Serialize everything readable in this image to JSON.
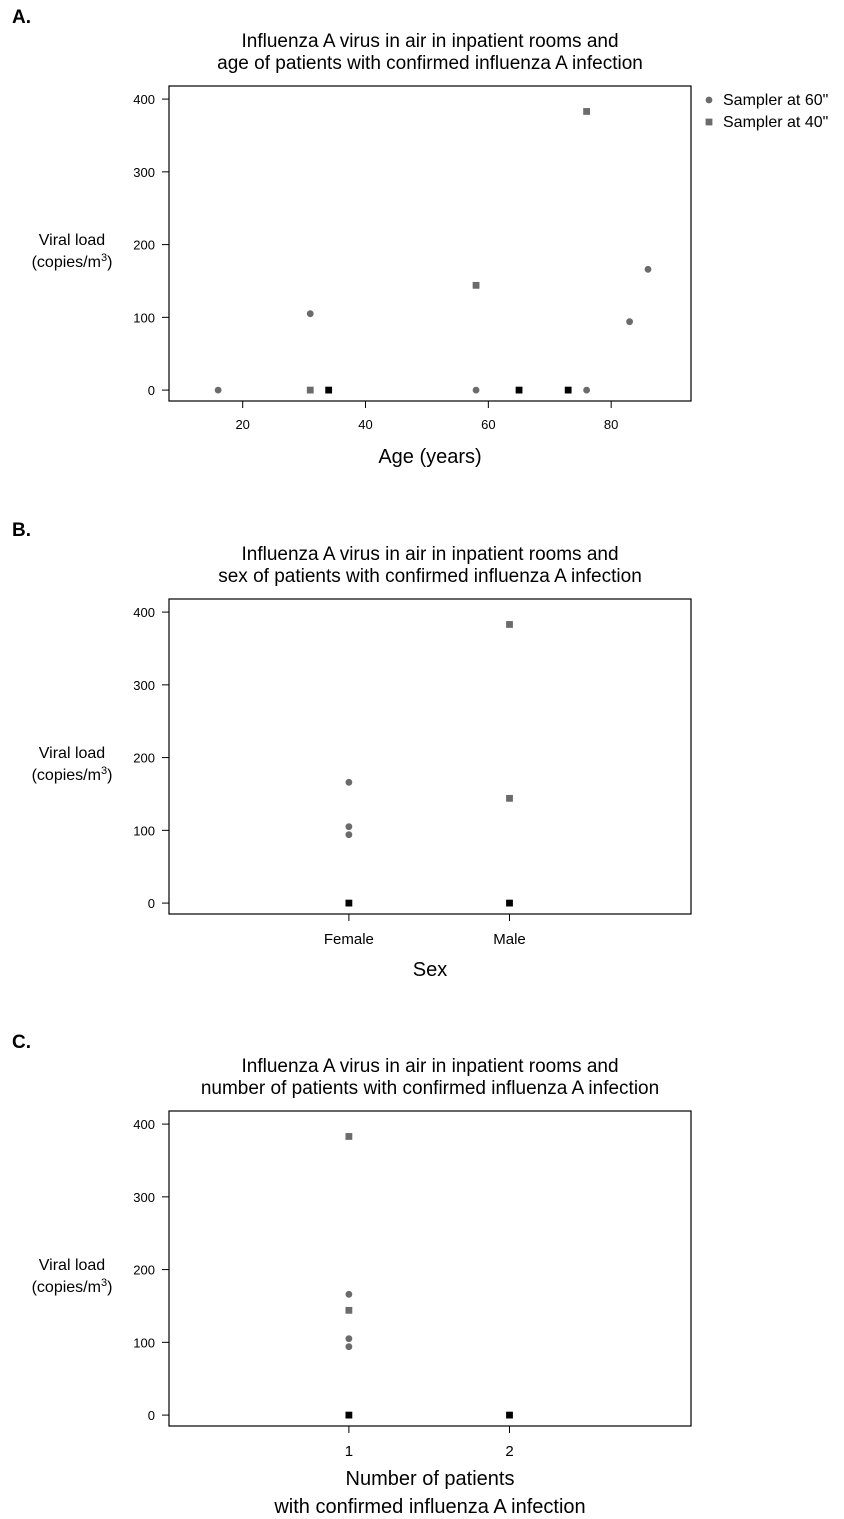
{
  "colors": {
    "gray_marker": "#6b6b6b",
    "black_marker": "#000000",
    "axis": "#000000"
  },
  "chart_data": [
    {
      "panel_label": "A.",
      "type": "scatter",
      "title": [
        "Influenza A virus in air in inpatient rooms and",
        "age of patients with confirmed influenza A infection"
      ],
      "ylabel": {
        "main": "Viral load",
        "unit_prefix": "(copies/m",
        "unit_sup": "3",
        "unit_suffix": ")"
      },
      "xlabel": [
        "Age (years)"
      ],
      "x_axis": {
        "scale": "numeric",
        "xlim": [
          8,
          93
        ],
        "ticks": [
          "20",
          "40",
          "60",
          "80"
        ]
      },
      "ylim": [
        -15,
        418
      ],
      "yticks": [
        "0",
        "100",
        "200",
        "300",
        "400"
      ],
      "legend": {
        "placement": "outside-right",
        "entries": [
          {
            "label": "Sampler at 60\"",
            "marker": "circle"
          },
          {
            "label": "Sampler at 40\"",
            "marker": "square"
          }
        ]
      },
      "series": [
        {
          "marker": "circle",
          "color": "gray",
          "points": [
            [
              16,
              0
            ],
            [
              31,
              105
            ],
            [
              58,
              0
            ],
            [
              76,
              0
            ],
            [
              83,
              94
            ],
            [
              86,
              166
            ]
          ]
        },
        {
          "marker": "square",
          "color": "gray",
          "points": [
            [
              31,
              0
            ],
            [
              58,
              144
            ],
            [
              76,
              383
            ]
          ]
        },
        {
          "marker": "square",
          "color": "black",
          "points": [
            [
              34,
              0
            ],
            [
              65,
              0
            ],
            [
              73,
              0
            ]
          ]
        }
      ]
    },
    {
      "panel_label": "B.",
      "type": "scatter",
      "title": [
        "Influenza A virus in air in inpatient rooms and",
        "sex of patients with confirmed influenza A infection"
      ],
      "ylabel": {
        "main": "Viral load",
        "unit_prefix": "(copies/m",
        "unit_sup": "3",
        "unit_suffix": ")"
      },
      "xlabel": [
        "Sex"
      ],
      "x_axis": {
        "scale": "categorical",
        "xlim": [
          0.5,
          3.75
        ],
        "categories": [
          "Female",
          "Male"
        ],
        "positions": [
          1.62,
          2.62
        ]
      },
      "ylim": [
        -15,
        418
      ],
      "yticks": [
        "0",
        "100",
        "200",
        "300",
        "400"
      ],
      "series": [
        {
          "marker": "circle",
          "color": "gray",
          "points": [
            [
              1.62,
              166
            ],
            [
              1.62,
              105
            ],
            [
              1.62,
              94
            ]
          ]
        },
        {
          "marker": "square",
          "color": "gray",
          "points": [
            [
              2.62,
              383
            ],
            [
              2.62,
              144
            ]
          ]
        },
        {
          "marker": "square",
          "color": "black",
          "points": [
            [
              1.62,
              0
            ],
            [
              2.62,
              0
            ]
          ]
        }
      ]
    },
    {
      "panel_label": "C.",
      "type": "scatter",
      "title": [
        "Influenza A virus in air in inpatient rooms and",
        "number of patients with confirmed influenza A infection"
      ],
      "ylabel": {
        "main": "Viral load",
        "unit_prefix": "(copies/m",
        "unit_sup": "3",
        "unit_suffix": ")"
      },
      "xlabel": [
        "Number of patients",
        "with confirmed influenza A infection"
      ],
      "x_axis": {
        "scale": "categorical",
        "xlim": [
          0.5,
          3.75
        ],
        "categories": [
          "1",
          "2"
        ],
        "positions": [
          1.62,
          2.62
        ]
      },
      "ylim": [
        -15,
        418
      ],
      "yticks": [
        "0",
        "100",
        "200",
        "300",
        "400"
      ],
      "series": [
        {
          "marker": "circle",
          "color": "gray",
          "points": [
            [
              1.62,
              166
            ],
            [
              1.62,
              105
            ],
            [
              1.62,
              94
            ]
          ]
        },
        {
          "marker": "square",
          "color": "gray",
          "points": [
            [
              1.62,
              383
            ],
            [
              1.62,
              144
            ]
          ]
        },
        {
          "marker": "square",
          "color": "black",
          "points": [
            [
              1.62,
              0
            ],
            [
              2.62,
              0
            ]
          ]
        }
      ]
    }
  ]
}
